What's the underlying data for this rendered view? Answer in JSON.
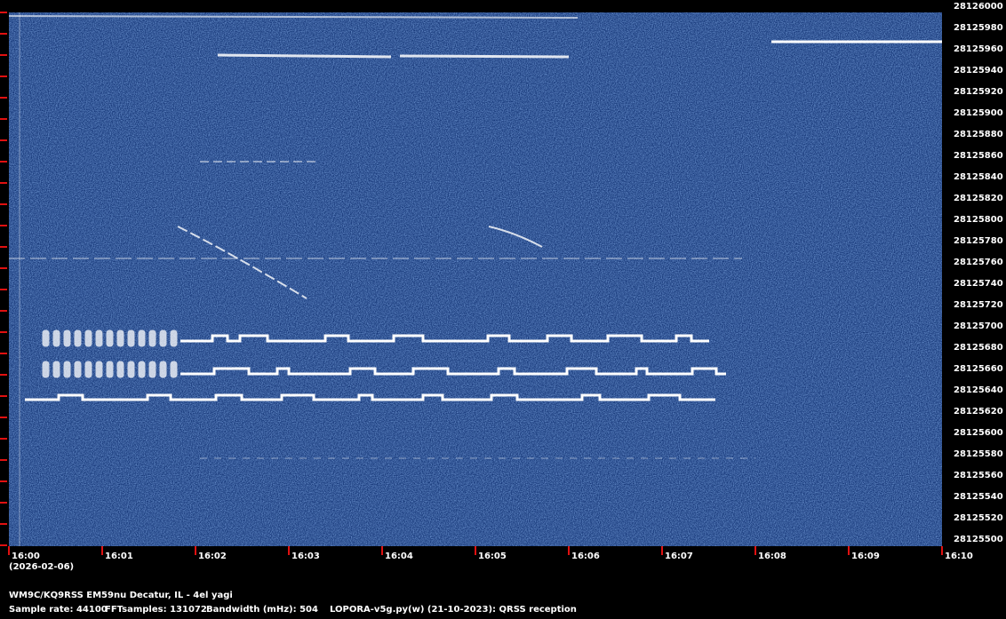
{
  "chart_data": {
    "type": "spectrogram",
    "ylim": [
      28125500,
      28126000
    ],
    "yticks": [
      28125500,
      28125520,
      28125540,
      28125560,
      28125580,
      28125600,
      28125620,
      28125640,
      28125660,
      28125680,
      28125700,
      28125720,
      28125740,
      28125760,
      28125780,
      28125800,
      28125820,
      28125840,
      28125860,
      28125880,
      28125900,
      28125920,
      28125940,
      28125960,
      28125980,
      28126000
    ],
    "xticks": [
      "16:00",
      "16:01",
      "16:02",
      "16:03",
      "16:04",
      "16:05",
      "16:06",
      "16:07",
      "16:08",
      "16:09",
      "16:10"
    ],
    "date_label": "(2026-02-06)",
    "station": "WM9C/KQ9RSS EM59nu Decatur, IL - 4el yagi",
    "footer": [
      "Sample rate: 44100",
      "FFTsamples: 131072",
      "Bandwidth (mHz): 504",
      "LOPORA-v5g.py(w) (21-10-2023): QRSS reception"
    ]
  }
}
